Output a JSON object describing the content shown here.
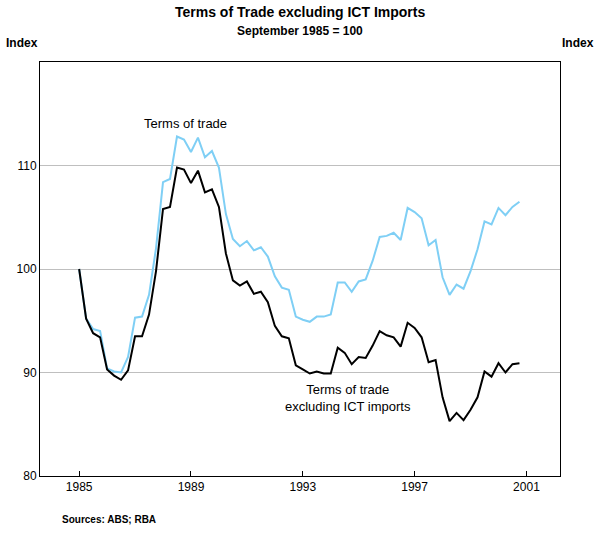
{
  "chart_data": {
    "type": "line",
    "title": "Terms of Trade excluding ICT Imports",
    "subtitle": "September 1985 = 100",
    "y_label": "Index",
    "y2_label": "Index",
    "source": "Sources: ABS; RBA",
    "x": [
      1985.0,
      1985.25,
      1985.5,
      1985.75,
      1986.0,
      1986.25,
      1986.5,
      1986.75,
      1987.0,
      1987.25,
      1987.5,
      1987.75,
      1988.0,
      1988.25,
      1988.5,
      1988.75,
      1989.0,
      1989.25,
      1989.5,
      1989.75,
      1990.0,
      1990.25,
      1990.5,
      1990.75,
      1991.0,
      1991.25,
      1991.5,
      1991.75,
      1992.0,
      1992.25,
      1992.5,
      1992.75,
      1993.0,
      1993.25,
      1993.5,
      1993.75,
      1994.0,
      1994.25,
      1994.5,
      1994.75,
      1995.0,
      1995.25,
      1995.5,
      1995.75,
      1996.0,
      1996.25,
      1996.5,
      1996.75,
      1997.0,
      1997.25,
      1997.5,
      1997.75,
      1998.0,
      1998.25,
      1998.5,
      1998.75,
      1999.0,
      1999.25,
      1999.5,
      1999.75,
      2000.0,
      2000.25,
      2000.5,
      2000.75
    ],
    "series": [
      {
        "name": "Terms of trade",
        "color": "#7fcff5",
        "values": [
          100,
          95.2,
          94.2,
          94,
          90.4,
          90.1,
          90,
          91.5,
          95.3,
          95.4,
          97.5,
          102,
          108.4,
          108.7,
          112.8,
          112.5,
          111.3,
          112.7,
          110.8,
          111.4,
          109.8,
          105.3,
          102.9,
          102.2,
          102.7,
          101.8,
          102.1,
          101.2,
          99.3,
          98.2,
          98,
          95.4,
          95.1,
          94.9,
          95.4,
          95.4,
          95.6,
          98.7,
          98.7,
          97.8,
          98.8,
          99,
          100.8,
          103.1,
          103.2,
          103.5,
          102.8,
          105.9,
          105.5,
          104.9,
          102.3,
          102.8,
          99.2,
          97.5,
          98.5,
          98.1,
          99.8,
          101.9,
          104.6,
          104.3,
          105.9,
          105.2,
          106,
          106.5
        ]
      },
      {
        "name": "Terms of trade excluding ICT imports",
        "color": "#000000",
        "values": [
          100,
          95.2,
          93.8,
          93.4,
          90.3,
          89.7,
          89.3,
          90.2,
          93.5,
          93.5,
          95.6,
          99.8,
          105.8,
          106,
          109.8,
          109.6,
          108.3,
          109.5,
          107.4,
          107.7,
          106,
          101.5,
          98.9,
          98.4,
          98.8,
          97.6,
          97.8,
          96.8,
          94.5,
          93.5,
          93.3,
          90.7,
          90.3,
          89.9,
          90.1,
          89.9,
          89.9,
          92.4,
          91.9,
          90.8,
          91.5,
          91.4,
          92.6,
          94,
          93.6,
          93.4,
          92.5,
          94.8,
          94.3,
          93.4,
          91,
          91.2,
          87.6,
          85.3,
          86.1,
          85.4,
          86.4,
          87.6,
          90.1,
          89.6,
          90.9,
          90,
          90.8,
          90.9
        ]
      }
    ],
    "annotations": [
      {
        "text": "Terms of trade",
        "x": 1988.8,
        "y": 114.1
      },
      {
        "text": "Terms of trade excluding ICT imports",
        "x": 1994.6,
        "y": 87.5
      }
    ],
    "xlim": [
      1983.6,
      2002.2
    ],
    "xticks": [
      1985,
      1989,
      1993,
      1997,
      2001
    ],
    "ylim": [
      80,
      120
    ],
    "yticks": [
      80,
      90,
      100,
      110
    ],
    "y2lim": [
      80,
      120
    ],
    "y2ticks": [
      80,
      90,
      100,
      110
    ],
    "grid": true
  }
}
